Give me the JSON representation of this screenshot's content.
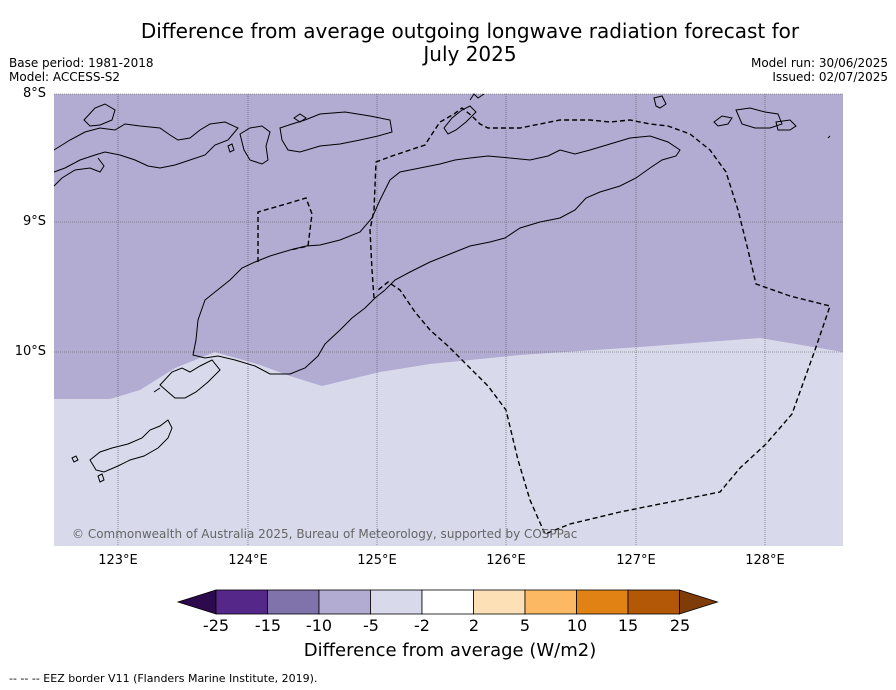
{
  "title_line1": "Difference from average outgoing longwave radiation forecast for",
  "title_line2": "July 2025",
  "base_period": "Base period: 1981-2018",
  "model": "Model: ACCESS-S2",
  "model_run": "Model run: 30/06/2025",
  "issued": "Issued: 02/07/2025",
  "lat_labels": [
    "8°S",
    "9°S",
    "10°S"
  ],
  "lon_labels": [
    "123°E",
    "124°E",
    "125°E",
    "126°E",
    "127°E",
    "128°E"
  ],
  "copyright": "© Commonwealth of Australia 2025, Bureau of Meteorology, supported by COSPPac",
  "colorbar": {
    "ticks": [
      "-25",
      "-15",
      "-10",
      "-5",
      "-2",
      "2",
      "5",
      "10",
      "15",
      "25"
    ],
    "colors": [
      "#2d0a4e",
      "#542788",
      "#8073ac",
      "#b2abd2",
      "#d8daeb",
      "#ffffff",
      "#fee0b6",
      "#fdb863",
      "#e08214",
      "#b35806",
      "#7f3b08"
    ],
    "label": "Difference from average (W/m2)"
  },
  "map_fill_colors": {
    "strong": "#b2abd2",
    "weak": "#d8daeb"
  },
  "footnote": "--  --  -- EEZ border V11 (Flanders Marine Institute, 2019)."
}
